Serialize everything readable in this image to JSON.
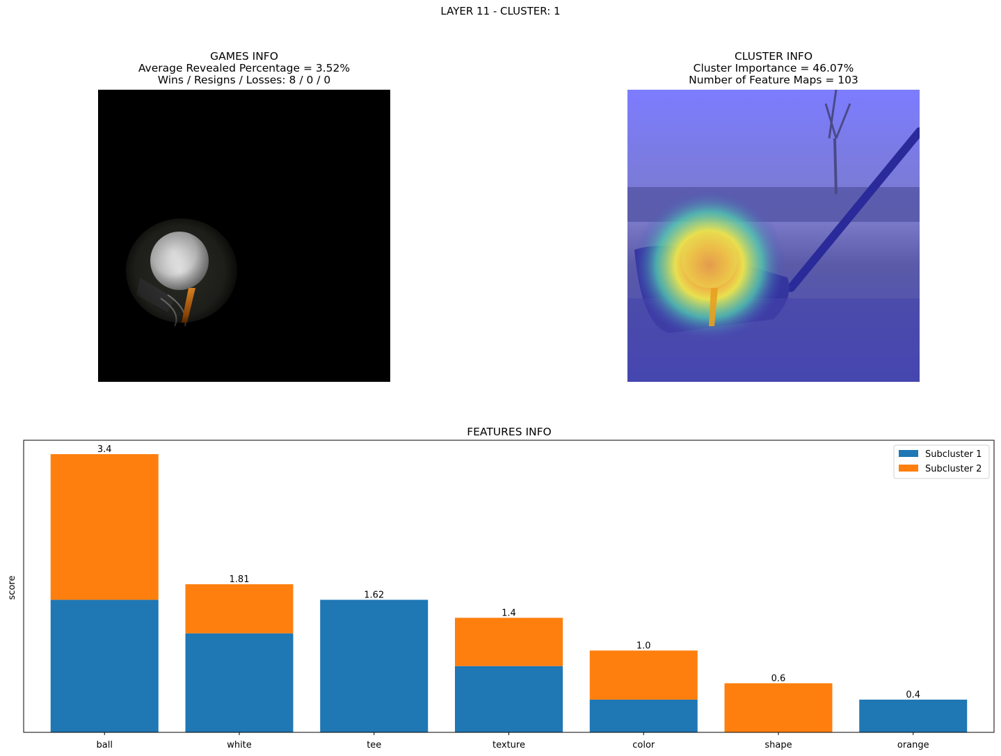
{
  "figure": {
    "suptitle": "LAYER 11 - CLUSTER: 1"
  },
  "games_info": {
    "title": "GAMES INFO",
    "line1": "Average Revealed Percentage = 3.52%",
    "line2": "Wins / Resigns / Losses: 8 / 0 / 0"
  },
  "cluster_info": {
    "title": "CLUSTER INFO",
    "line1": "Cluster Importance = 46.07%",
    "line2": "Number of Feature Maps = 103"
  },
  "colors": {
    "subcluster1": "#1f77b4",
    "subcluster2": "#ff7f0e"
  },
  "chart_data": {
    "type": "bar",
    "stacked": true,
    "title": "FEATURES INFO",
    "xlabel": "",
    "ylabel": "score",
    "ylim": [
      0,
      3.57
    ],
    "categories": [
      "ball",
      "white",
      "tee",
      "texture",
      "color",
      "shape",
      "orange"
    ],
    "series": [
      {
        "name": "Subcluster 1",
        "values": [
          1.62,
          1.21,
          1.62,
          0.81,
          0.4,
          0.0,
          0.4
        ]
      },
      {
        "name": "Subcluster 2",
        "values": [
          1.78,
          0.6,
          0.0,
          0.59,
          0.6,
          0.6,
          0.0
        ]
      }
    ],
    "totals_labels": [
      "3.4",
      "1.81",
      "1.62",
      "1.4",
      "1.0",
      "0.6",
      "0.4"
    ],
    "legend_position": "top-right",
    "grid": false,
    "y_ticks_shown": false
  }
}
